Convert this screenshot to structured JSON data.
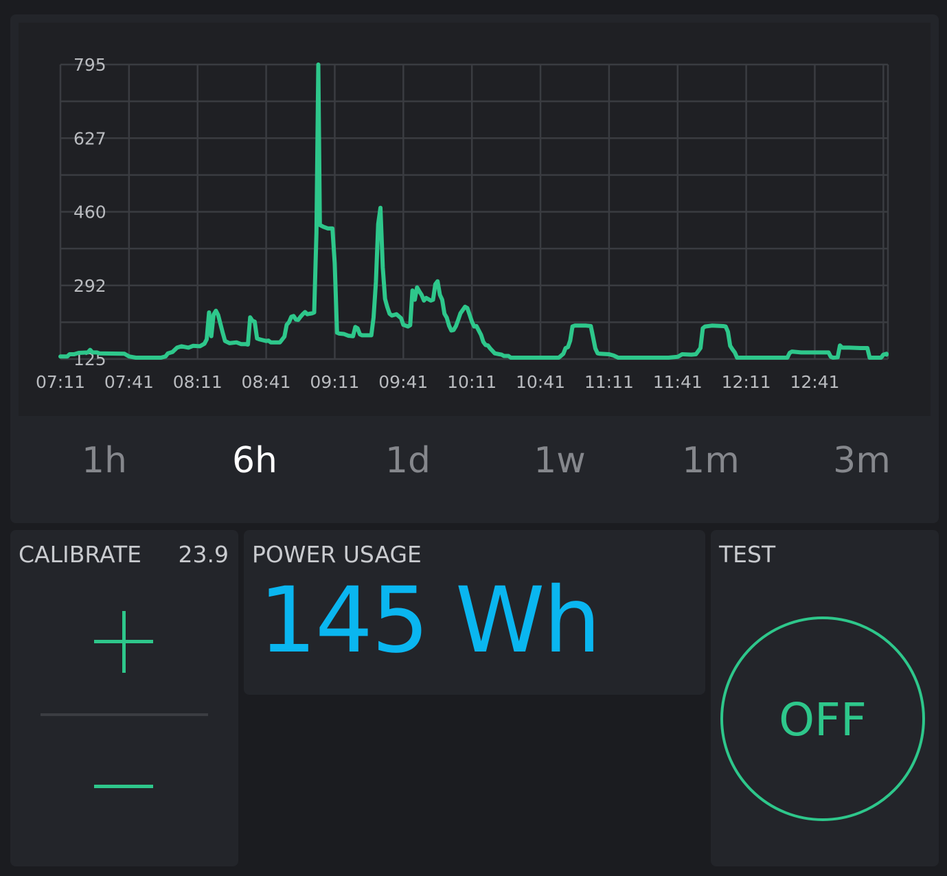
{
  "chart_data": {
    "type": "line",
    "series_color": "#2ec78b",
    "y_ticks": [
      "795",
      "627",
      "460",
      "292",
      "125"
    ],
    "ylim": [
      125,
      795
    ],
    "x_ticks": [
      "07:11",
      "07:41",
      "08:11",
      "08:41",
      "09:11",
      "09:41",
      "10:11",
      "10:41",
      "11:11",
      "11:41",
      "12:11",
      "12:41"
    ],
    "x_minutes_range": [
      0,
      362
    ],
    "points": [
      [
        0,
        131
      ],
      [
        3,
        131
      ],
      [
        4,
        136
      ],
      [
        6,
        136
      ],
      [
        8,
        139
      ],
      [
        12,
        140
      ],
      [
        13,
        146
      ],
      [
        14,
        140
      ],
      [
        16,
        140
      ],
      [
        17,
        138
      ],
      [
        28,
        137
      ],
      [
        30,
        131
      ],
      [
        33,
        128
      ],
      [
        44,
        128
      ],
      [
        46,
        131
      ],
      [
        47,
        138
      ],
      [
        49,
        141
      ],
      [
        51,
        151
      ],
      [
        53,
        154
      ],
      [
        56,
        151
      ],
      [
        58,
        155
      ],
      [
        61,
        154
      ],
      [
        63,
        160
      ],
      [
        64,
        170
      ],
      [
        65,
        231
      ],
      [
        66,
        177
      ],
      [
        67,
        226
      ],
      [
        68,
        235
      ],
      [
        69,
        225
      ],
      [
        71,
        185
      ],
      [
        72,
        166
      ],
      [
        74,
        161
      ],
      [
        77,
        163
      ],
      [
        79,
        159
      ],
      [
        81,
        159
      ],
      [
        82,
        158
      ],
      [
        83,
        220
      ],
      [
        84,
        212
      ],
      [
        85,
        210
      ],
      [
        86,
        172
      ],
      [
        87,
        170
      ],
      [
        90,
        166
      ],
      [
        91,
        167
      ],
      [
        92,
        163
      ],
      [
        96,
        163
      ],
      [
        98,
        176
      ],
      [
        99,
        203
      ],
      [
        100,
        209
      ],
      [
        101,
        221
      ],
      [
        102,
        223
      ],
      [
        103,
        215
      ],
      [
        104,
        214
      ],
      [
        105,
        221
      ],
      [
        106,
        227
      ],
      [
        107,
        232
      ],
      [
        108,
        227
      ],
      [
        109,
        228
      ],
      [
        110,
        229
      ],
      [
        111,
        231
      ],
      [
        112,
        412
      ],
      [
        112.8,
        795
      ],
      [
        113.5,
        430
      ],
      [
        115,
        426
      ],
      [
        117,
        422
      ],
      [
        119,
        422
      ],
      [
        120,
        343
      ],
      [
        121,
        185
      ],
      [
        122,
        183
      ],
      [
        124,
        182
      ],
      [
        126,
        178
      ],
      [
        128,
        177
      ],
      [
        129,
        198
      ],
      [
        130,
        195
      ],
      [
        131,
        181
      ],
      [
        132,
        179
      ],
      [
        134,
        179
      ],
      [
        136,
        179
      ],
      [
        137,
        220
      ],
      [
        138,
        300
      ],
      [
        139,
        432
      ],
      [
        140,
        469
      ],
      [
        141,
        333
      ],
      [
        142,
        262
      ],
      [
        143,
        243
      ],
      [
        144,
        228
      ],
      [
        145,
        224
      ],
      [
        147,
        227
      ],
      [
        149,
        218
      ],
      [
        150,
        203
      ],
      [
        152,
        199
      ],
      [
        153,
        202
      ],
      [
        154,
        281
      ],
      [
        155,
        260
      ],
      [
        156,
        288
      ],
      [
        157,
        279
      ],
      [
        158,
        271
      ],
      [
        159,
        258
      ],
      [
        160,
        264
      ],
      [
        162,
        258
      ],
      [
        163,
        260
      ],
      [
        164,
        295
      ],
      [
        165,
        302
      ],
      [
        166,
        271
      ],
      [
        167,
        260
      ],
      [
        168,
        228
      ],
      [
        169,
        219
      ],
      [
        170,
        201
      ],
      [
        171,
        190
      ],
      [
        172,
        191
      ],
      [
        173,
        200
      ],
      [
        174,
        214
      ],
      [
        175,
        229
      ],
      [
        177,
        244
      ],
      [
        178,
        241
      ],
      [
        179,
        226
      ],
      [
        180,
        210
      ],
      [
        181,
        199
      ],
      [
        182,
        200
      ],
      [
        184,
        180
      ],
      [
        185,
        164
      ],
      [
        186,
        157
      ],
      [
        187,
        156
      ],
      [
        188,
        149
      ],
      [
        190,
        138
      ],
      [
        192,
        136
      ],
      [
        193,
        135
      ],
      [
        194,
        132
      ],
      [
        196,
        132
      ],
      [
        197,
        125
      ],
      [
        210,
        125
      ],
      [
        218,
        125
      ],
      [
        220,
        137
      ],
      [
        221,
        150
      ],
      [
        222,
        152
      ],
      [
        223,
        167
      ],
      [
        224,
        199
      ],
      [
        225,
        201
      ],
      [
        228,
        201
      ],
      [
        230,
        201
      ],
      [
        232,
        200
      ],
      [
        233,
        175
      ],
      [
        234,
        149
      ],
      [
        235,
        138
      ],
      [
        236,
        137
      ],
      [
        240,
        136
      ],
      [
        242,
        133
      ],
      [
        244,
        124
      ],
      [
        250,
        124
      ],
      [
        262,
        124
      ],
      [
        266,
        124
      ],
      [
        270,
        130
      ],
      [
        272,
        136
      ],
      [
        276,
        135
      ],
      [
        278,
        136
      ],
      [
        280,
        150
      ],
      [
        281,
        195
      ],
      [
        282,
        199
      ],
      [
        285,
        201
      ],
      [
        290,
        200
      ],
      [
        291,
        199
      ],
      [
        292,
        187
      ],
      [
        293,
        155
      ],
      [
        294,
        147
      ],
      [
        295,
        140
      ],
      [
        296,
        125
      ],
      [
        300,
        124
      ],
      [
        310,
        124
      ],
      [
        318,
        124
      ],
      [
        319,
        139
      ],
      [
        320,
        142
      ],
      [
        324,
        140
      ],
      [
        330,
        140
      ],
      [
        336,
        140
      ],
      [
        337,
        130
      ],
      [
        338,
        127
      ],
      [
        340,
        129
      ],
      [
        341,
        156
      ],
      [
        342,
        151
      ],
      [
        345,
        151
      ],
      [
        350,
        150
      ],
      [
        353,
        150
      ],
      [
        354,
        127
      ],
      [
        356,
        123
      ],
      [
        359,
        123
      ],
      [
        360,
        135
      ],
      [
        362,
        137
      ],
      [
        370,
        135
      ]
    ]
  },
  "range_tabs": [
    "1h",
    "6h",
    "1d",
    "1w",
    "1m",
    "3m"
  ],
  "active_range": "6h",
  "calibrate": {
    "title": "CALIBRATE",
    "value": "23.9"
  },
  "power_usage": {
    "title": "POWER USAGE",
    "value": "145 Wh",
    "color": "#0ab6f0"
  },
  "test": {
    "title": "TEST",
    "state": "OFF"
  }
}
